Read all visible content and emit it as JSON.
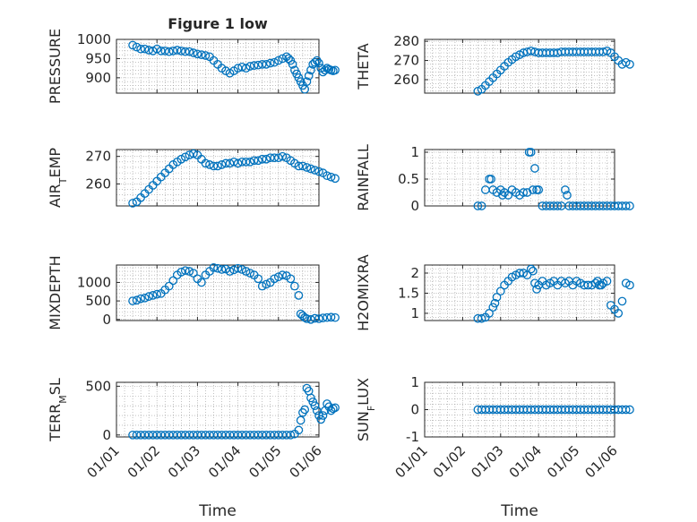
{
  "chart_data": [
    {
      "type": "scatter",
      "id": "pressure",
      "title": "Figure 1 low",
      "xlabel": "",
      "ylabel": "PRESSURE",
      "ylim": [
        860,
        1000
      ],
      "yticks": [
        900,
        950,
        1000
      ],
      "x": [
        0.4,
        0.5,
        0.6,
        0.7,
        0.8,
        0.9,
        1.0,
        1.1,
        1.2,
        1.3,
        1.4,
        1.5,
        1.6,
        1.7,
        1.8,
        1.9,
        2.0,
        2.1,
        2.2,
        2.3,
        2.4,
        2.5,
        2.6,
        2.7,
        2.8,
        2.9,
        3.0,
        3.1,
        3.2,
        3.3,
        3.4,
        3.5,
        3.6,
        3.7,
        3.8,
        3.9,
        4.0,
        4.1,
        4.2,
        4.25,
        4.3,
        4.35,
        4.4,
        4.45,
        4.5,
        4.55,
        4.6,
        4.65,
        4.7,
        4.75,
        4.8,
        4.85,
        4.9,
        4.95,
        5.0,
        5.05,
        5.1,
        5.15,
        5.2,
        5.25,
        5.3,
        5.35,
        5.4
      ],
      "y": [
        985,
        980,
        975,
        975,
        972,
        970,
        975,
        970,
        970,
        968,
        970,
        972,
        970,
        968,
        968,
        965,
        962,
        960,
        958,
        955,
        945,
        935,
        925,
        918,
        912,
        918,
        925,
        928,
        925,
        930,
        932,
        933,
        935,
        935,
        938,
        940,
        945,
        950,
        955,
        950,
        945,
        935,
        920,
        910,
        900,
        890,
        880,
        870,
        890,
        905,
        920,
        935,
        940,
        945,
        938,
        925,
        915,
        920,
        925,
        922,
        920,
        918,
        920
      ]
    },
    {
      "type": "scatter",
      "id": "theta",
      "title": "",
      "xlabel": "",
      "ylabel": "THETA",
      "ylim": [
        253,
        281
      ],
      "yticks": [
        260,
        270,
        280
      ],
      "x": [
        1.4,
        1.5,
        1.6,
        1.7,
        1.8,
        1.9,
        2.0,
        2.1,
        2.2,
        2.3,
        2.4,
        2.5,
        2.6,
        2.7,
        2.8,
        2.9,
        3.0,
        3.1,
        3.2,
        3.3,
        3.4,
        3.5,
        3.6,
        3.7,
        3.8,
        3.9,
        4.0,
        4.1,
        4.2,
        4.3,
        4.4,
        4.5,
        4.6,
        4.7,
        4.8,
        4.9,
        5.0,
        5.1,
        5.2,
        5.3,
        5.4
      ],
      "y": [
        254,
        255,
        257,
        259,
        261,
        263,
        265,
        267,
        269,
        270.5,
        272,
        273,
        274,
        274.5,
        275,
        274.5,
        274,
        274,
        274,
        274,
        274,
        274,
        274.5,
        274.5,
        274.5,
        274.5,
        274.5,
        274.5,
        274.5,
        274.5,
        274.5,
        274.5,
        274.5,
        274.5,
        275,
        274,
        272,
        270,
        268,
        269,
        268
      ]
    },
    {
      "type": "scatter",
      "id": "air_temp",
      "title": "",
      "xlabel": "",
      "ylabel": "AIR_TEMP",
      "ylim": [
        252,
        272.5
      ],
      "yticks": [
        260,
        270
      ],
      "x": [
        0.4,
        0.5,
        0.6,
        0.7,
        0.8,
        0.9,
        1.0,
        1.1,
        1.2,
        1.3,
        1.4,
        1.5,
        1.6,
        1.7,
        1.8,
        1.9,
        2.0,
        2.1,
        2.2,
        2.3,
        2.4,
        2.5,
        2.6,
        2.7,
        2.8,
        2.9,
        3.0,
        3.1,
        3.2,
        3.3,
        3.4,
        3.5,
        3.6,
        3.7,
        3.8,
        3.9,
        4.0,
        4.1,
        4.2,
        4.3,
        4.4,
        4.5,
        4.6,
        4.7,
        4.8,
        4.9,
        5.0,
        5.1,
        5.2,
        5.3,
        5.4
      ],
      "y": [
        253,
        253.5,
        255,
        256.5,
        258,
        259.5,
        261,
        262.5,
        264,
        265.5,
        267,
        268,
        269,
        269.8,
        270.5,
        271,
        270.5,
        269,
        267.5,
        267,
        266.5,
        266.5,
        267,
        267.5,
        267.5,
        268,
        267.5,
        268,
        268,
        268,
        268.5,
        268.5,
        269,
        269,
        269.5,
        269.5,
        269.5,
        270,
        269.5,
        268.5,
        267.5,
        266.5,
        266.5,
        266,
        265.5,
        265,
        264.5,
        264,
        263,
        262.5,
        262
      ]
    },
    {
      "type": "scatter",
      "id": "rainfall",
      "title": "",
      "xlabel": "",
      "ylabel": "RAINFALL",
      "ylim": [
        0,
        1.05
      ],
      "yticks": [
        0,
        0.5,
        1
      ],
      "ytick_labels": [
        "0",
        "0.5",
        "1"
      ],
      "x": [
        1.4,
        1.5,
        1.6,
        1.7,
        1.75,
        1.8,
        1.9,
        2.0,
        2.05,
        2.1,
        2.2,
        2.3,
        2.4,
        2.5,
        2.6,
        2.7,
        2.75,
        2.8,
        2.85,
        2.9,
        2.95,
        3.0,
        3.1,
        3.2,
        3.3,
        3.4,
        3.5,
        3.6,
        3.7,
        3.75,
        3.8,
        3.9,
        4.0,
        4.1,
        4.2,
        4.3,
        4.4,
        4.5,
        4.6,
        4.7,
        4.8,
        4.9,
        5.0,
        5.1,
        5.2,
        5.3,
        5.4
      ],
      "y": [
        0,
        0,
        0.3,
        0.5,
        0.5,
        0.3,
        0.25,
        0.3,
        0.2,
        0.25,
        0.2,
        0.3,
        0.25,
        0.2,
        0.25,
        0.25,
        1,
        1,
        0.3,
        0.7,
        0.3,
        0.3,
        0,
        0,
        0,
        0,
        0,
        0,
        0.3,
        0.2,
        0,
        0,
        0,
        0,
        0,
        0,
        0,
        0,
        0,
        0,
        0,
        0,
        0,
        0,
        0,
        0,
        0
      ]
    },
    {
      "type": "scatter",
      "id": "mixdepth",
      "title": "",
      "xlabel": "",
      "ylabel": "MIXDEPTH",
      "ylim": [
        -30,
        1470
      ],
      "yticks": [
        0,
        500,
        1000
      ],
      "x": [
        0.4,
        0.5,
        0.6,
        0.7,
        0.8,
        0.9,
        1.0,
        1.1,
        1.2,
        1.3,
        1.4,
        1.5,
        1.6,
        1.7,
        1.8,
        1.9,
        2.0,
        2.1,
        2.2,
        2.3,
        2.4,
        2.5,
        2.6,
        2.7,
        2.8,
        2.9,
        3.0,
        3.1,
        3.2,
        3.3,
        3.4,
        3.5,
        3.6,
        3.7,
        3.8,
        3.9,
        4.0,
        4.1,
        4.2,
        4.3,
        4.4,
        4.5,
        4.55,
        4.6,
        4.65,
        4.7,
        4.8,
        4.9,
        5.0,
        5.1,
        5.2,
        5.3,
        5.4
      ],
      "y": [
        500,
        520,
        560,
        580,
        620,
        650,
        680,
        700,
        800,
        900,
        1050,
        1200,
        1280,
        1320,
        1300,
        1250,
        1100,
        1000,
        1200,
        1300,
        1400,
        1380,
        1350,
        1360,
        1300,
        1340,
        1380,
        1350,
        1300,
        1250,
        1200,
        1100,
        900,
        950,
        1000,
        1100,
        1150,
        1200,
        1180,
        1100,
        900,
        650,
        150,
        100,
        50,
        20,
        0,
        30,
        20,
        40,
        50,
        60,
        50
      ]
    },
    {
      "type": "scatter",
      "id": "h2omixra",
      "title": "",
      "xlabel": "",
      "ylabel": "H2OMIXRA",
      "ylim": [
        0.82,
        2.2
      ],
      "yticks": [
        1,
        1.5,
        2
      ],
      "ytick_labels": [
        "1",
        "1.5",
        "2"
      ],
      "x": [
        1.4,
        1.5,
        1.6,
        1.7,
        1.8,
        1.85,
        1.9,
        2.0,
        2.1,
        2.2,
        2.3,
        2.4,
        2.5,
        2.6,
        2.7,
        2.8,
        2.85,
        2.9,
        2.95,
        3.0,
        3.1,
        3.2,
        3.3,
        3.4,
        3.5,
        3.6,
        3.7,
        3.8,
        3.9,
        4.0,
        4.1,
        4.2,
        4.3,
        4.4,
        4.5,
        4.55,
        4.6,
        4.65,
        4.7,
        4.8,
        4.9,
        5.0,
        5.1,
        5.2,
        5.3,
        5.4
      ],
      "y": [
        0.87,
        0.87,
        0.9,
        1.0,
        1.15,
        1.25,
        1.4,
        1.55,
        1.7,
        1.8,
        1.9,
        1.95,
        2.0,
        2.0,
        1.95,
        2.1,
        2.05,
        1.75,
        1.6,
        1.7,
        1.8,
        1.7,
        1.75,
        1.8,
        1.7,
        1.8,
        1.75,
        1.8,
        1.7,
        1.8,
        1.75,
        1.7,
        1.7,
        1.7,
        1.75,
        1.8,
        1.7,
        1.7,
        1.75,
        1.8,
        1.2,
        1.1,
        1.0,
        1.3,
        1.75,
        1.7
      ]
    },
    {
      "type": "scatter",
      "id": "terr_msl",
      "title": "",
      "xlabel": "Time",
      "ylabel": "TERR_MSL",
      "ylim": [
        -20,
        540
      ],
      "yticks": [
        0,
        500
      ],
      "xtick_labels": [
        "01/01",
        "01/02",
        "01/03",
        "01/04",
        "01/05",
        "01/06"
      ],
      "x": [
        0.4,
        0.5,
        0.6,
        0.7,
        0.8,
        0.9,
        1.0,
        1.1,
        1.2,
        1.3,
        1.4,
        1.5,
        1.6,
        1.7,
        1.8,
        1.9,
        2.0,
        2.1,
        2.2,
        2.3,
        2.4,
        2.5,
        2.6,
        2.7,
        2.8,
        2.9,
        3.0,
        3.1,
        3.2,
        3.3,
        3.4,
        3.5,
        3.6,
        3.7,
        3.8,
        3.9,
        4.0,
        4.1,
        4.2,
        4.3,
        4.4,
        4.5,
        4.55,
        4.6,
        4.65,
        4.7,
        4.75,
        4.8,
        4.85,
        4.9,
        4.95,
        5.0,
        5.05,
        5.1,
        5.15,
        5.2,
        5.25,
        5.3,
        5.35,
        5.4
      ],
      "y": [
        0,
        0,
        0,
        0,
        0,
        0,
        0,
        0,
        0,
        0,
        0,
        0,
        0,
        0,
        0,
        0,
        0,
        0,
        0,
        0,
        0,
        0,
        0,
        0,
        0,
        0,
        0,
        0,
        0,
        0,
        0,
        0,
        0,
        0,
        0,
        0,
        0,
        0,
        0,
        0,
        10,
        50,
        150,
        230,
        260,
        480,
        450,
        380,
        340,
        300,
        250,
        200,
        160,
        200,
        250,
        320,
        290,
        250,
        270,
        280
      ]
    },
    {
      "type": "scatter",
      "id": "sun_flux",
      "title": "",
      "xlabel": "Time",
      "ylabel": "SUN_FLUX",
      "ylim": [
        -1,
        1
      ],
      "yticks": [
        -1,
        0,
        1
      ],
      "ytick_labels": [
        "-1",
        "0",
        "1"
      ],
      "xtick_labels": [
        "01/01",
        "01/02",
        "01/03",
        "01/04",
        "01/05",
        "01/06"
      ],
      "x": [
        1.4,
        1.5,
        1.6,
        1.7,
        1.8,
        1.9,
        2.0,
        2.1,
        2.2,
        2.3,
        2.4,
        2.5,
        2.6,
        2.7,
        2.8,
        2.9,
        3.0,
        3.1,
        3.2,
        3.3,
        3.4,
        3.5,
        3.6,
        3.7,
        3.8,
        3.9,
        4.0,
        4.1,
        4.2,
        4.3,
        4.4,
        4.5,
        4.6,
        4.7,
        4.8,
        4.9,
        5.0,
        5.1,
        5.2,
        5.3,
        5.4
      ],
      "y": [
        0,
        0,
        0,
        0,
        0,
        0,
        0,
        0,
        0,
        0,
        0,
        0,
        0,
        0,
        0,
        0,
        0,
        0,
        0,
        0,
        0,
        0,
        0,
        0,
        0,
        0,
        0,
        0,
        0,
        0,
        0,
        0,
        0,
        0,
        0,
        0,
        0,
        0,
        0,
        0,
        0
      ]
    }
  ],
  "colors": {
    "marker": "#0072BD",
    "axis": "#262626"
  }
}
